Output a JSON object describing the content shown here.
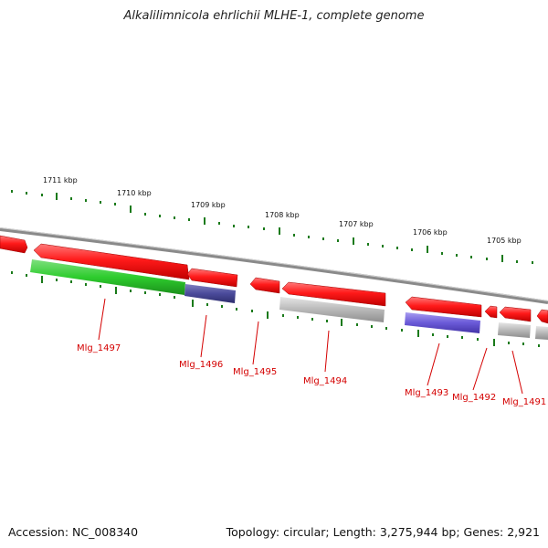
{
  "title": "Alkalilimnicola ehrlichii MLHE-1, complete genome",
  "footer": {
    "accession": "Accession: NC_008340",
    "topology": "Topology: circular; Length: 3,275,944 bp; Genes: 2,921"
  },
  "colors": {
    "forward_gene": "#ff1a1a",
    "gene_label": "#d40000",
    "backbone": "#888888",
    "tick": "#1a7a1a",
    "cds_green": "#2ecc2e",
    "cds_navy": "#4a4a9a",
    "cds_blue": "#6a5ad8",
    "cds_grey": "#b8b8b8"
  },
  "scale_labels": [
    "1711 kbp",
    "1710 kbp",
    "1709 kbp",
    "1708 kbp",
    "1707 kbp",
    "1706 kbp",
    "1705 kbp"
  ],
  "genes": [
    {
      "name": "Mlg_1497"
    },
    {
      "name": "Mlg_1496"
    },
    {
      "name": "Mlg_1495"
    },
    {
      "name": "Mlg_1494"
    },
    {
      "name": "Mlg_1493"
    },
    {
      "name": "Mlg_1492"
    },
    {
      "name": "Mlg_1491"
    }
  ]
}
